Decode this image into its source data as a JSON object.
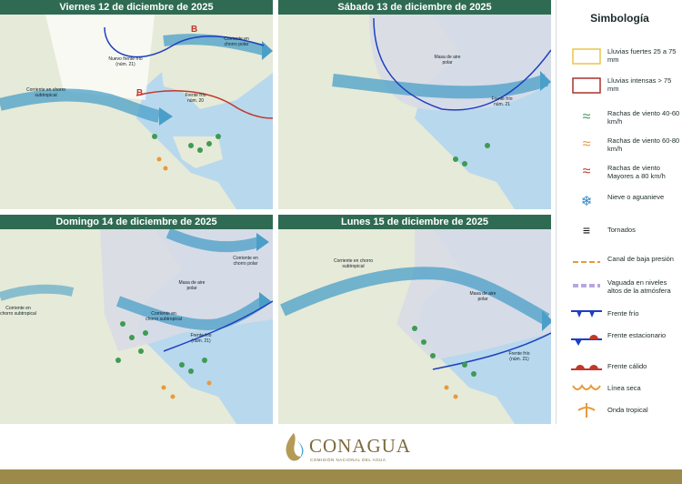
{
  "panels": [
    {
      "title": "Viernes 12 de diciembre de 2025",
      "labels": [
        "Nuevo frente frío (núm. 21)",
        "Corriente en chorro polar",
        "Corriente en chorro subtropical",
        "Frente frío núm. 20"
      ],
      "pressure": [
        "B",
        "B"
      ]
    },
    {
      "title": "Sábado 13 de diciembre de 2025",
      "labels": [
        "Masa de aire polar",
        "Frente frío núm. 21"
      ]
    },
    {
      "title": "Domingo 14 de diciembre de 2025",
      "labels": [
        "Corriente en chorro polar",
        "Corriente en chorro subtropical",
        "Masa de aire polar",
        "Corriente en chorro subtropical",
        "Frente frío (núm. 21)"
      ]
    },
    {
      "title": "Lunes 15 de diciembre de 2025",
      "labels": [
        "Corriente en chorro subtropical",
        "Masa de aire polar",
        "Frente frío (núm. 21)"
      ]
    }
  ],
  "legend": {
    "title": "Simbología",
    "items": [
      {
        "label": "Lluvias fuertes 25 a 75 mm",
        "color": "#e8c547"
      },
      {
        "label": "Lluvias intensas > 75 mm",
        "color": "#a8322d"
      },
      {
        "label": "Rachas de viento 40-60 km/h",
        "color": "#3e9b52"
      },
      {
        "label": "Rachas de viento 60-80 km/h",
        "color": "#e89a3c"
      },
      {
        "label": "Rachas de viento Mayores a 80 km/h",
        "color": "#c0392b"
      },
      {
        "label": "Nieve o aguanieve",
        "color": "#2e86c1"
      },
      {
        "label": "Tornados",
        "color": "#111111"
      },
      {
        "label": "Canal de baja presión",
        "color": "#e89a3c"
      },
      {
        "label": "Vaguada en niveles altos de la atmósfera",
        "color": "#b9a6e0"
      },
      {
        "label": "Frente frío",
        "color": "#1f3fbf"
      },
      {
        "label": "Frente estacionario",
        "color": "#c0392b"
      },
      {
        "label": "Frente cálido",
        "color": "#c0392b"
      },
      {
        "label": "Línea seca",
        "color": "#e89a3c"
      },
      {
        "label": "Onda tropical",
        "color": "#e89a3c"
      }
    ]
  },
  "footer": {
    "brand": "CONAGUA",
    "subtitle": "COMISIÓN NACIONAL DEL AGUA"
  }
}
